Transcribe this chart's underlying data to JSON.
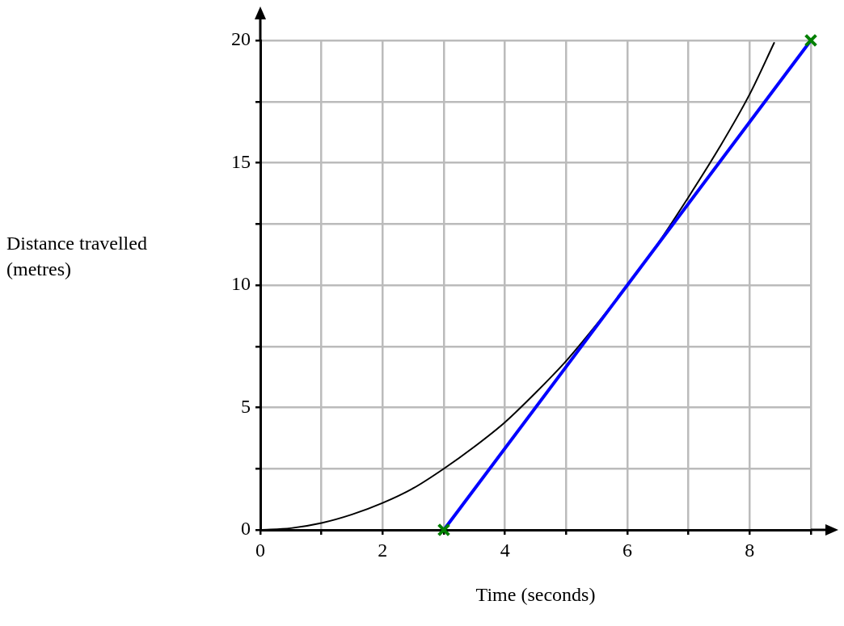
{
  "chart_data": {
    "type": "line",
    "xlabel": "Time (seconds)",
    "ylabel": "Distance travelled (metres)",
    "xlim": [
      0,
      9
    ],
    "ylim": [
      0,
      20
    ],
    "xticks": [
      0,
      {
        "value": 1,
        "label": null
      },
      2,
      {
        "value": 3,
        "label": null
      },
      4,
      {
        "value": 5,
        "label": null
      },
      6,
      {
        "value": 7,
        "label": null
      },
      8,
      {
        "value": 9,
        "label": null
      }
    ],
    "yticks": [
      0,
      {
        "value": 2.5,
        "label": null
      },
      5,
      {
        "value": 7.5,
        "label": null
      },
      10,
      {
        "value": 12.5,
        "label": null
      },
      15,
      {
        "value": 17.5,
        "label": null
      },
      20
    ],
    "grid": true,
    "series": [
      {
        "type": "line",
        "color": "#000000",
        "marker": "none",
        "x": [
          0,
          0.5,
          1,
          1.5,
          2,
          2.5,
          3,
          3.5,
          4,
          4.5,
          5,
          5.5,
          6,
          6.5,
          7,
          7.5,
          8,
          8.4
        ],
        "values": [
          0,
          0.07,
          0.28,
          0.63,
          1.1,
          1.7,
          2.5,
          3.4,
          4.4,
          5.6,
          6.9,
          8.4,
          10,
          11.7,
          13.6,
          15.6,
          17.8,
          19.9
        ]
      },
      {
        "type": "line",
        "color": "#0000ff",
        "marker": "none",
        "x": [
          3,
          9
        ],
        "values": [
          0,
          20
        ]
      },
      {
        "type": "scatter",
        "color": "#008000",
        "marker": "cross",
        "x": [
          3,
          9
        ],
        "values": [
          0,
          20
        ]
      }
    ]
  }
}
